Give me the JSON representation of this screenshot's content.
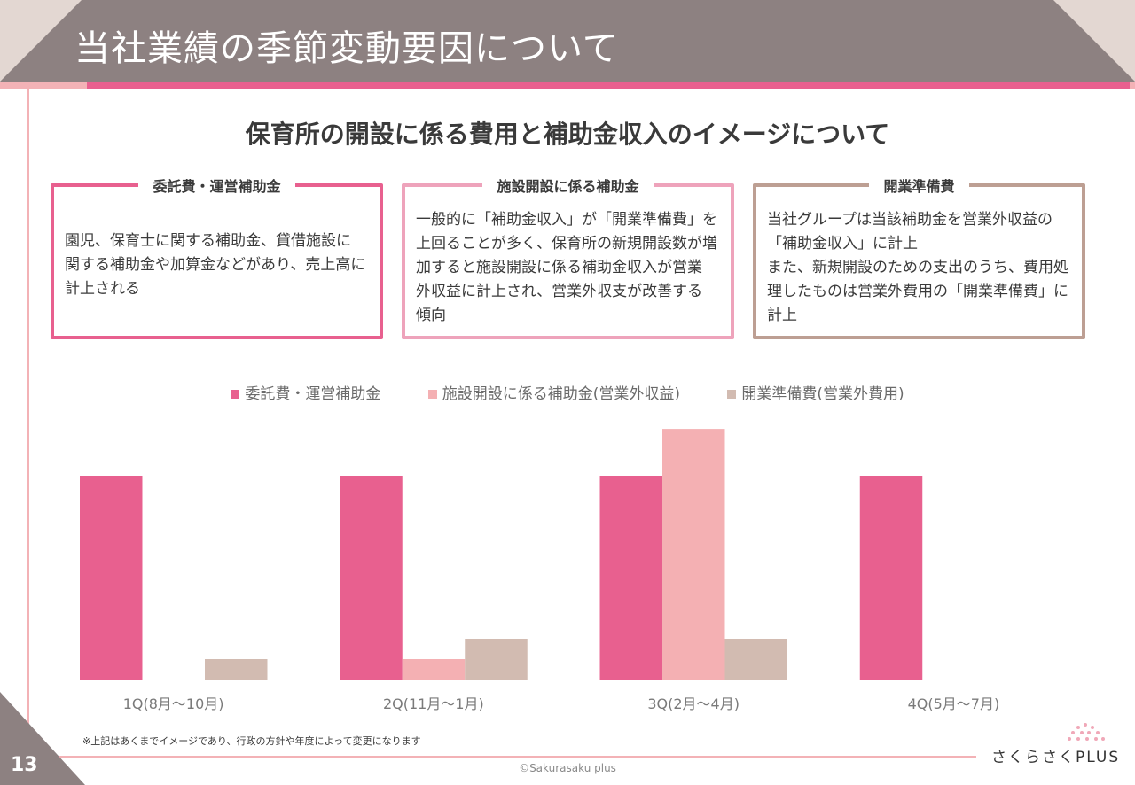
{
  "header": {
    "title": "当社業績の季節変動要因について"
  },
  "subtitle": "保育所の開設に係る費用と補助金収入のイメージについて",
  "boxes": [
    {
      "title": "委託費・運営補助金",
      "body": "園児、保育士に関する補助金、貸借施設に\n関する補助金や加算金などがあり、売上高に\n計上される",
      "color": "#e8608f"
    },
    {
      "title": "施設開設に係る補助金",
      "body": "一般的に「補助金収入」が「開業準備費」を\n上回ることが多く、保育所の新規開設数が増\n加すると施設開設に係る補助金収入が営業\n外収益に計上され、営業外収支が改善する\n傾向",
      "color": "#eea3bb"
    },
    {
      "title": "開業準備費",
      "body": "当社グループは当該補助金を営業外収益の\n「補助金収入」に計上\nまた、新規開設のための支出のうち、費用処\n理したものは営業外費用の「開業準備費」に\n計上",
      "color": "#bd9f93"
    }
  ],
  "chart_data": {
    "type": "bar",
    "title": "",
    "xlabel": "",
    "ylabel": "",
    "categories": [
      "1Q(8月～10月)",
      "2Q(11月～1月)",
      "3Q(2月～4月)",
      "4Q(5月～7月)"
    ],
    "series": [
      {
        "name": "委託費・運営補助金",
        "color": "#e8608f",
        "values": [
          100,
          100,
          100,
          100
        ]
      },
      {
        "name": "施設開設に係る補助金(営業外収益)",
        "color": "#f4b0b3",
        "values": [
          0,
          10,
          123,
          0
        ]
      },
      {
        "name": "開業準備費(営業外費用)",
        "color": "#d2bbb1",
        "values": [
          10,
          20,
          20,
          0
        ]
      }
    ],
    "ylim": [
      0,
      125
    ],
    "grid": false,
    "legend": "top-center",
    "note": "illustrative image; no numeric axis shown"
  },
  "footnote": "※上記はあくまでイメージであり、行政の方針や年度によって変更になります",
  "copyright": "©Sakurasaku plus",
  "page_number": "13",
  "logo": {
    "text": "さくらさくPLUS",
    "dots_color": "#f0a8b8"
  }
}
